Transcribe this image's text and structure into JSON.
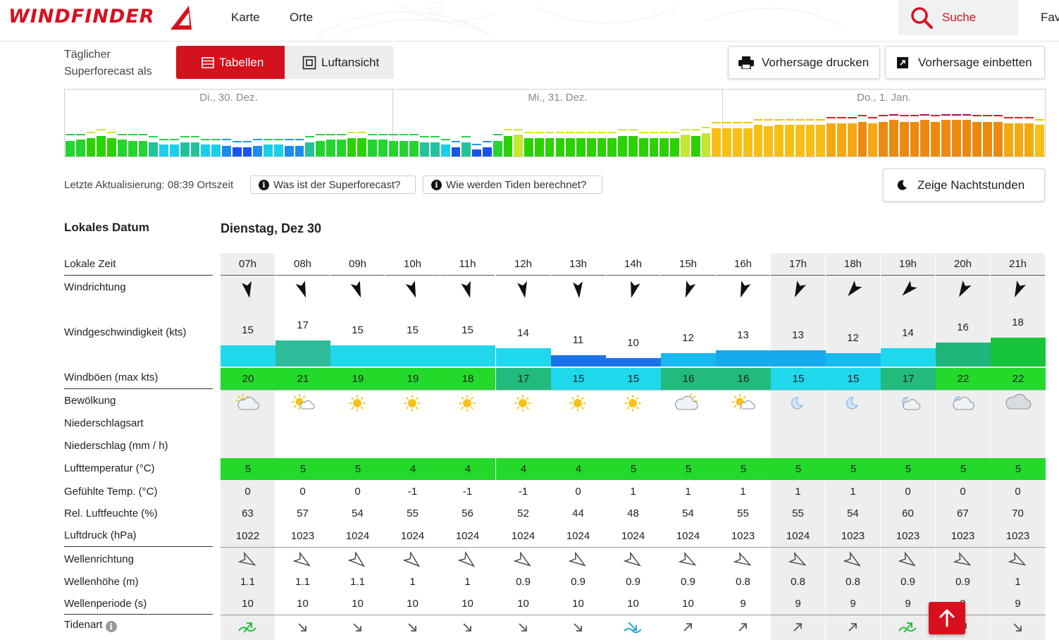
{
  "header": {
    "logo": "WINDFINDER",
    "nav": [
      "Karte",
      "Orte"
    ],
    "search_label": "Suche",
    "fav_label": "Fav"
  },
  "controls": {
    "daily_label_1": "Täglicher",
    "daily_label_2": "Superforecast als",
    "tab_tables": "Tabellen",
    "tab_aerial": "Luftansicht",
    "print_label": "Vorhersage drucken",
    "embed_label": "Vorhersage einbetten"
  },
  "overview": {
    "days": [
      "Di., 30. Dez.",
      "Mi., 31. Dez.",
      "Do., 1. Jan."
    ],
    "wind_kts": [
      14,
      15,
      16,
      17,
      16,
      15,
      14,
      14,
      13,
      12,
      12,
      13,
      13,
      12,
      12,
      11,
      10,
      10,
      11,
      12,
      12,
      11,
      11,
      13,
      14,
      15,
      15,
      16,
      16,
      15,
      15,
      14,
      14,
      14,
      13,
      13,
      12,
      10,
      13,
      9,
      10,
      14,
      17,
      18,
      16,
      16,
      16,
      16,
      16,
      16,
      16,
      16,
      16,
      17,
      17,
      16,
      16,
      16,
      16,
      18,
      17,
      19,
      22,
      22,
      22,
      22,
      24,
      23,
      24,
      24,
      24,
      24,
      24,
      25,
      25,
      25,
      26,
      25,
      26,
      27,
      26,
      26,
      27,
      26,
      27,
      27,
      27,
      26,
      26,
      26,
      25,
      25,
      25,
      24
    ]
  },
  "info": {
    "update_label": "Letzte Aktualisierung: 08:39 Ortszeit",
    "superforecast_q": "Was ist der Superforecast?",
    "tides_q": "Wie werden Tiden berechnet?",
    "night_label": "Zeige Nachtstunden"
  },
  "table": {
    "date_label": "Lokales Datum",
    "day_title": "Dienstag, Dez 30",
    "row_labels": {
      "time": "Lokale Zeit",
      "dir": "Windrichtung",
      "speed": "Windgeschwindigkeit (kts)",
      "gust": "Windböen (max kts)",
      "cloud": "Bewölkung",
      "precip_type": "Niederschlagsart",
      "precip": "Niederschlag (mm / h)",
      "temp": "Lufttemperatur (°C)",
      "felt": "Gefühlte Temp. (°C)",
      "humid": "Rel. Luftfeuchte (%)",
      "press": "Luftdruck (hPa)",
      "wavedir": "Wellenrichtung",
      "waveh": "Wellenhöhe (m)",
      "wavep": "Wellenperiode (s)",
      "tide": "Tidenart"
    },
    "hours": [
      "07h",
      "08h",
      "09h",
      "10h",
      "11h",
      "12h",
      "13h",
      "14h",
      "15h",
      "16h",
      "17h",
      "18h",
      "19h",
      "20h",
      "21h"
    ],
    "night": [
      true,
      false,
      false,
      false,
      false,
      false,
      false,
      false,
      false,
      false,
      true,
      true,
      true,
      true,
      true
    ],
    "wind_dir_deg": [
      350,
      340,
      340,
      340,
      345,
      350,
      355,
      15,
      20,
      20,
      25,
      40,
      45,
      30,
      25
    ],
    "wind_speed": [
      "15",
      "17",
      "15",
      "15",
      "15",
      "14",
      "11",
      "10",
      "12",
      "13",
      "13",
      "12",
      "14",
      "16",
      "18"
    ],
    "wind_speed_num": [
      15,
      17,
      15,
      15,
      15,
      14,
      11,
      10,
      12,
      13,
      13,
      12,
      14,
      16,
      18
    ],
    "wind_colors": [
      "#1fd8ec",
      "#2ebc9a",
      "#1fd8ec",
      "#1fd8ec",
      "#1fd8ec",
      "#1fd8ec",
      "#1a73e8",
      "#1a73e8",
      "#17b9ee",
      "#17a9ee",
      "#17a9ee",
      "#17b9ee",
      "#1fd8ec",
      "#20b57a",
      "#18c43a"
    ],
    "gusts": [
      "20",
      "21",
      "19",
      "19",
      "18",
      "17",
      "15",
      "15",
      "16",
      "16",
      "15",
      "15",
      "17",
      "22",
      "22"
    ],
    "gust_colors": [
      "#23d92a",
      "#23d92a",
      "#23d92a",
      "#23d92a",
      "#23d92a",
      "#22ba7d",
      "#1fd8ec",
      "#1fd8ec",
      "#22ba7d",
      "#22ba7d",
      "#1fd8ec",
      "#1fd8ec",
      "#22ba7d",
      "#23d92a",
      "#23d92a"
    ],
    "cloud_icons": [
      "partly-cloudy-sun-icon",
      "sun-cloud-icon",
      "sun-icon",
      "sun-icon",
      "sun-icon",
      "sun-icon",
      "sun-icon",
      "sun-icon",
      "cloud-sun-icon",
      "sun-cloud-icon",
      "moon-icon",
      "moon-icon",
      "moon-cloud-icon",
      "cloud-moon-icon",
      "cloud-icon"
    ],
    "temp": [
      "5",
      "5",
      "5",
      "4",
      "4",
      "4",
      "4",
      "5",
      "5",
      "5",
      "5",
      "5",
      "5",
      "5",
      "5"
    ],
    "temp_color": "#23d92a",
    "felt": [
      "0",
      "0",
      "0",
      "-1",
      "-1",
      "-1",
      "0",
      "1",
      "1",
      "1",
      "1",
      "1",
      "0",
      "0",
      "0"
    ],
    "humid": [
      "63",
      "57",
      "54",
      "55",
      "56",
      "52",
      "44",
      "48",
      "54",
      "55",
      "55",
      "54",
      "60",
      "67",
      "70"
    ],
    "press": [
      "1022",
      "1023",
      "1024",
      "1024",
      "1024",
      "1024",
      "1024",
      "1024",
      "1024",
      "1023",
      "1024",
      "1023",
      "1023",
      "1023",
      "1023"
    ],
    "wave_dir_deg": [
      300,
      305,
      310,
      310,
      310,
      305,
      305,
      305,
      300,
      300,
      300,
      305,
      305,
      300,
      300
    ],
    "wave_h": [
      "1.1",
      "1.1",
      "1.1",
      "1",
      "1",
      "0.9",
      "0.9",
      "0.9",
      "0.9",
      "0.8",
      "0.8",
      "0.8",
      "0.9",
      "0.9",
      "1"
    ],
    "wave_p": [
      "10",
      "10",
      "10",
      "10",
      "10",
      "10",
      "10",
      "10",
      "10",
      "9",
      "9",
      "9",
      "9",
      "9",
      "9"
    ],
    "tide_icons": [
      "tide-high-icon",
      "tide-falling-icon",
      "tide-falling-icon",
      "tide-falling-icon",
      "tide-falling-icon",
      "tide-falling-icon",
      "tide-falling-icon",
      "tide-low-icon",
      "tide-rising-icon",
      "tide-rising-icon",
      "tide-rising-icon",
      "tide-rising-icon",
      "tide-high-icon",
      "tide-rising-icon",
      "tide-falling-icon"
    ]
  }
}
